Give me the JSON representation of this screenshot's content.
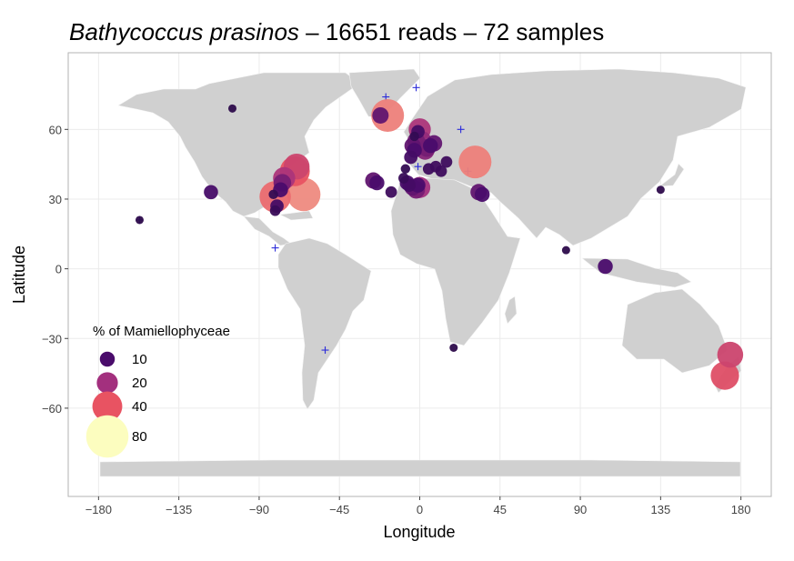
{
  "chart_data": {
    "type": "scatter",
    "title": {
      "species": "Bathycoccus prasinos",
      "rest": " – 16651 reads – 72 samples"
    },
    "xlabel": "Longitude",
    "ylabel": "Latitude",
    "xlim": [
      -197,
      197
    ],
    "ylim": [
      -98,
      93
    ],
    "x_ticks": [
      -180,
      -135,
      -90,
      -45,
      0,
      45,
      90,
      135,
      180
    ],
    "x_tick_labels": [
      "−180",
      "−135",
      "−90",
      "−45",
      "0",
      "45",
      "90",
      "135",
      "180"
    ],
    "y_ticks": [
      -60,
      -30,
      0,
      30,
      60
    ],
    "y_tick_labels": [
      "−60",
      "−30",
      "0",
      "30",
      "60"
    ],
    "grid": true,
    "legend": {
      "title": "% of Mamiellophyceae",
      "position": "bottom-left",
      "entries": [
        {
          "label": "10",
          "value": 10
        },
        {
          "label": "20",
          "value": 20
        },
        {
          "label": "40",
          "value": 40
        },
        {
          "label": "80",
          "value": 80
        }
      ]
    },
    "colors": {
      "land": "#d0d0d0",
      "panel_border": "#b3b3b3",
      "grid": "#ebebeb",
      "absent_marker": "#2b2bd9",
      "scale": [
        "#120b2e",
        "#4a0c6b",
        "#a3307e",
        "#e85362",
        "#fcfdbf"
      ]
    },
    "points": [
      {
        "lon": -105,
        "lat": 69,
        "pct": 3
      },
      {
        "lon": -117,
        "lat": 33,
        "pct": 9
      },
      {
        "lon": -157,
        "lat": 21,
        "pct": 3
      },
      {
        "lon": -81,
        "lat": 31,
        "pct": 44
      },
      {
        "lon": -65,
        "lat": 32,
        "pct": 50
      },
      {
        "lon": -80,
        "lat": 27,
        "pct": 8
      },
      {
        "lon": -81,
        "lat": 25,
        "pct": 5
      },
      {
        "lon": -82,
        "lat": 32,
        "pct": 4
      },
      {
        "lon": -78,
        "lat": 34,
        "pct": 10
      },
      {
        "lon": -77,
        "lat": 37,
        "pct": 14
      },
      {
        "lon": -76,
        "lat": 39,
        "pct": 22
      },
      {
        "lon": -70,
        "lat": 42,
        "pct": 40
      },
      {
        "lon": -69,
        "lat": 44,
        "pct": 30
      },
      {
        "lon": -22,
        "lat": 66,
        "pct": 12
      },
      {
        "lon": -18,
        "lat": 66,
        "pct": 48
      },
      {
        "lon": -26,
        "lat": 38,
        "pct": 12
      },
      {
        "lon": -24,
        "lat": 37,
        "pct": 10
      },
      {
        "lon": -16,
        "lat": 33,
        "pct": 6
      },
      {
        "lon": -9,
        "lat": 39,
        "pct": 5
      },
      {
        "lon": -8,
        "lat": 43,
        "pct": 4
      },
      {
        "lon": -7,
        "lat": 37,
        "pct": 10
      },
      {
        "lon": -6,
        "lat": 36,
        "pct": 8
      },
      {
        "lon": -4,
        "lat": 35,
        "pct": 12
      },
      {
        "lon": -5,
        "lat": 48,
        "pct": 8
      },
      {
        "lon": -3,
        "lat": 51,
        "pct": 10
      },
      {
        "lon": -4,
        "lat": 53,
        "pct": 12
      },
      {
        "lon": -2,
        "lat": 55,
        "pct": 14
      },
      {
        "lon": -3,
        "lat": 57,
        "pct": 4
      },
      {
        "lon": -1,
        "lat": 59,
        "pct": 8
      },
      {
        "lon": 0,
        "lat": 60,
        "pct": 22
      },
      {
        "lon": 1,
        "lat": 55,
        "pct": 18
      },
      {
        "lon": -2,
        "lat": 34,
        "pct": 14
      },
      {
        "lon": -1,
        "lat": 36,
        "pct": 10
      },
      {
        "lon": 0,
        "lat": 35,
        "pct": 20
      },
      {
        "lon": 3,
        "lat": 51,
        "pct": 16
      },
      {
        "lon": 4,
        "lat": 52,
        "pct": 14
      },
      {
        "lon": 6,
        "lat": 53,
        "pct": 10
      },
      {
        "lon": 8,
        "lat": 54,
        "pct": 12
      },
      {
        "lon": 5,
        "lat": 43,
        "pct": 6
      },
      {
        "lon": 9,
        "lat": 44,
        "pct": 6
      },
      {
        "lon": 15,
        "lat": 46,
        "pct": 6
      },
      {
        "lon": 12,
        "lat": 42,
        "pct": 6
      },
      {
        "lon": 31,
        "lat": 46,
        "pct": 48
      },
      {
        "lon": 33,
        "lat": 33,
        "pct": 12
      },
      {
        "lon": 35,
        "lat": 32,
        "pct": 10
      },
      {
        "lon": 82,
        "lat": 8,
        "pct": 3
      },
      {
        "lon": 104,
        "lat": 1,
        "pct": 10
      },
      {
        "lon": 135,
        "lat": 34,
        "pct": 3
      },
      {
        "lon": 19,
        "lat": -34,
        "pct": 3
      },
      {
        "lon": 174,
        "lat": -37,
        "pct": 30
      },
      {
        "lon": 171,
        "lat": -46,
        "pct": 36
      }
    ],
    "absent": [
      {
        "lon": -157,
        "lat": 21
      },
      {
        "lon": -81,
        "lat": 9
      },
      {
        "lon": -65,
        "lat": 45
      },
      {
        "lon": -53,
        "lat": -35
      },
      {
        "lon": -19,
        "lat": 74
      },
      {
        "lon": -2,
        "lat": 78
      },
      {
        "lon": -1,
        "lat": 44
      },
      {
        "lon": 23,
        "lat": 60
      },
      {
        "lon": 27,
        "lat": 42
      }
    ]
  }
}
